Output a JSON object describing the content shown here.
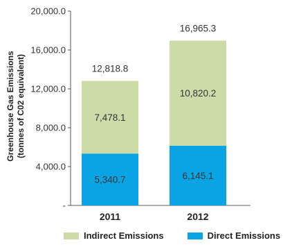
{
  "chart_data": {
    "type": "bar",
    "stacked": true,
    "categories": [
      "2011",
      "2012"
    ],
    "series": [
      {
        "name": "Direct Emissions",
        "values": [
          5340.7,
          6145.1
        ],
        "value_labels": [
          "5,340.7",
          "6,145.1"
        ],
        "color": "#0aa4e4"
      },
      {
        "name": "Indirect Emissions",
        "values": [
          7478.1,
          10820.2
        ],
        "value_labels": [
          "7,478.1",
          "10,820.2"
        ],
        "color": "#cddba8"
      }
    ],
    "totals": [
      12818.8,
      16965.3
    ],
    "total_labels": [
      "12,818.8",
      "16,965.3"
    ],
    "ylabel_line1": "Greenhouse Gas Emissions",
    "ylabel_line2": "(tonnes of C02 equivalent)",
    "ylim": [
      0,
      20000
    ],
    "yticks": [
      0,
      4000,
      8000,
      12000,
      16000,
      20000
    ],
    "ytick_labels": [
      "-",
      "4,000.0",
      "8,000.0",
      "12,000.0",
      "16,000.0",
      "20,000.0"
    ],
    "legend": [
      {
        "label": "Indirect Emissions",
        "color": "#cddba8"
      },
      {
        "label": "Direct Emissions",
        "color": "#0aa4e4"
      }
    ],
    "legend_position": "bottom",
    "grid": false
  }
}
